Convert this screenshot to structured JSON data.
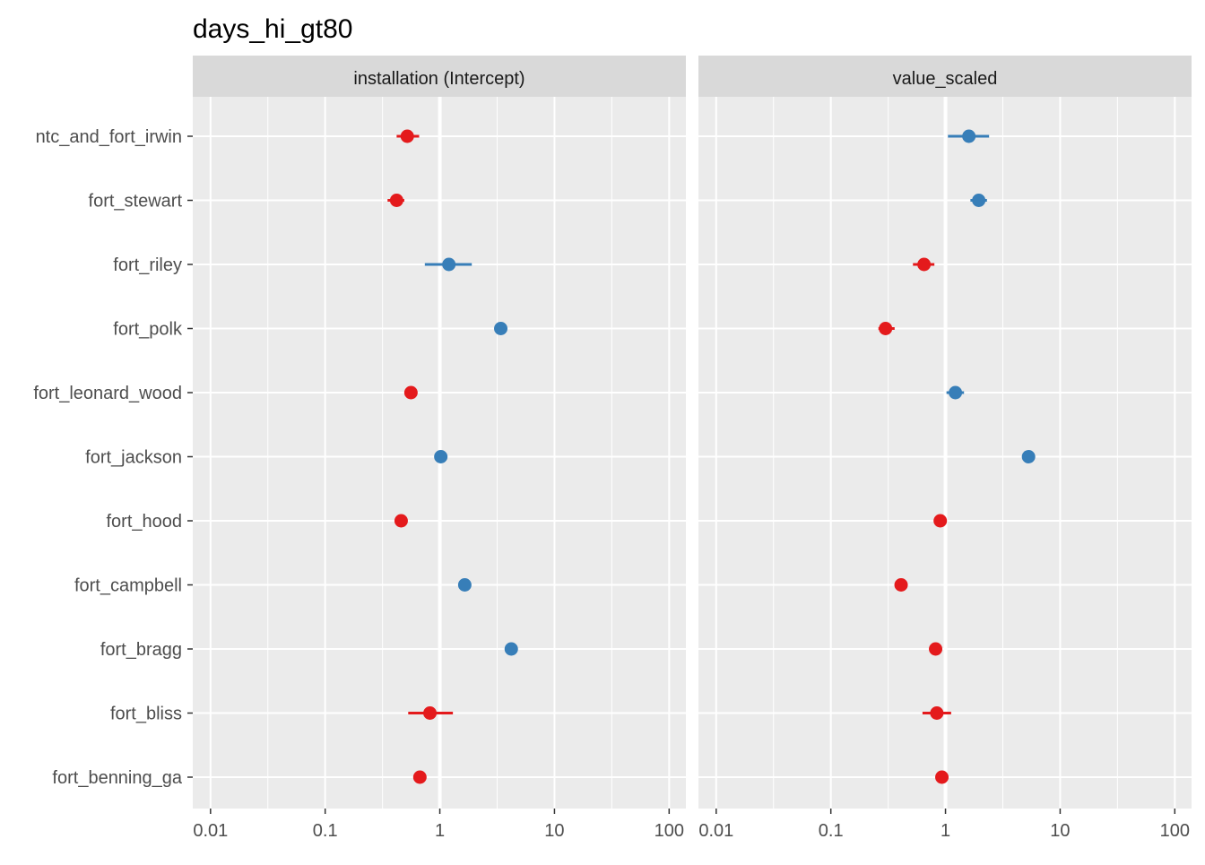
{
  "chart_data": {
    "type": "scatter",
    "title": "days_hi_gt80",
    "xscale": "log10",
    "xlim": [
      0.007,
      140
    ],
    "x_ticks": [
      0.01,
      0.1,
      1,
      10,
      100
    ],
    "x_tick_labels": [
      "0.01",
      "0.1",
      "1",
      "10",
      "100"
    ],
    "reference_line_x": 1,
    "categories": [
      "ntc_and_fort_irwin",
      "fort_stewart",
      "fort_riley",
      "fort_polk",
      "fort_leonard_wood",
      "fort_jackson",
      "fort_hood",
      "fort_campbell",
      "fort_bragg",
      "fort_bliss",
      "fort_benning_ga"
    ],
    "colors": {
      "above_one": "#377eb8",
      "below_one": "#e41a1c"
    },
    "panels": [
      {
        "strip_label": "installation (Intercept)",
        "points": [
          {
            "category": "ntc_and_fort_irwin",
            "estimate": 0.52,
            "lower": 0.42,
            "upper": 0.66
          },
          {
            "category": "fort_stewart",
            "estimate": 0.42,
            "lower": 0.35,
            "upper": 0.49
          },
          {
            "category": "fort_riley",
            "estimate": 1.2,
            "lower": 0.74,
            "upper": 1.9
          },
          {
            "category": "fort_polk",
            "estimate": 3.4,
            "lower": 3.2,
            "upper": 3.6
          },
          {
            "category": "fort_leonard_wood",
            "estimate": 0.56,
            "lower": 0.52,
            "upper": 0.61
          },
          {
            "category": "fort_jackson",
            "estimate": 1.02,
            "lower": 0.96,
            "upper": 1.08
          },
          {
            "category": "fort_hood",
            "estimate": 0.46,
            "lower": 0.43,
            "upper": 0.5
          },
          {
            "category": "fort_campbell",
            "estimate": 1.65,
            "lower": 1.55,
            "upper": 1.75
          },
          {
            "category": "fort_bragg",
            "estimate": 4.2,
            "lower": 3.95,
            "upper": 4.45
          },
          {
            "category": "fort_bliss",
            "estimate": 0.82,
            "lower": 0.53,
            "upper": 1.3
          },
          {
            "category": "fort_benning_ga",
            "estimate": 0.67,
            "lower": 0.63,
            "upper": 0.72
          }
        ]
      },
      {
        "strip_label": "value_scaled",
        "points": [
          {
            "category": "ntc_and_fort_irwin",
            "estimate": 1.6,
            "lower": 1.05,
            "upper": 2.4
          },
          {
            "category": "fort_stewart",
            "estimate": 1.95,
            "lower": 1.65,
            "upper": 2.3
          },
          {
            "category": "fort_riley",
            "estimate": 0.65,
            "lower": 0.52,
            "upper": 0.8
          },
          {
            "category": "fort_polk",
            "estimate": 0.3,
            "lower": 0.26,
            "upper": 0.36
          },
          {
            "category": "fort_leonard_wood",
            "estimate": 1.22,
            "lower": 1.02,
            "upper": 1.45
          },
          {
            "category": "fort_jackson",
            "estimate": 5.3,
            "lower": 5.0,
            "upper": 5.6
          },
          {
            "category": "fort_hood",
            "estimate": 0.9,
            "lower": 0.85,
            "upper": 0.96
          },
          {
            "category": "fort_campbell",
            "estimate": 0.41,
            "lower": 0.38,
            "upper": 0.44
          },
          {
            "category": "fort_bragg",
            "estimate": 0.82,
            "lower": 0.77,
            "upper": 0.87
          },
          {
            "category": "fort_bliss",
            "estimate": 0.84,
            "lower": 0.63,
            "upper": 1.12
          },
          {
            "category": "fort_benning_ga",
            "estimate": 0.93,
            "lower": 0.88,
            "upper": 0.98
          }
        ]
      }
    ],
    "grid": true,
    "legend": "none"
  }
}
